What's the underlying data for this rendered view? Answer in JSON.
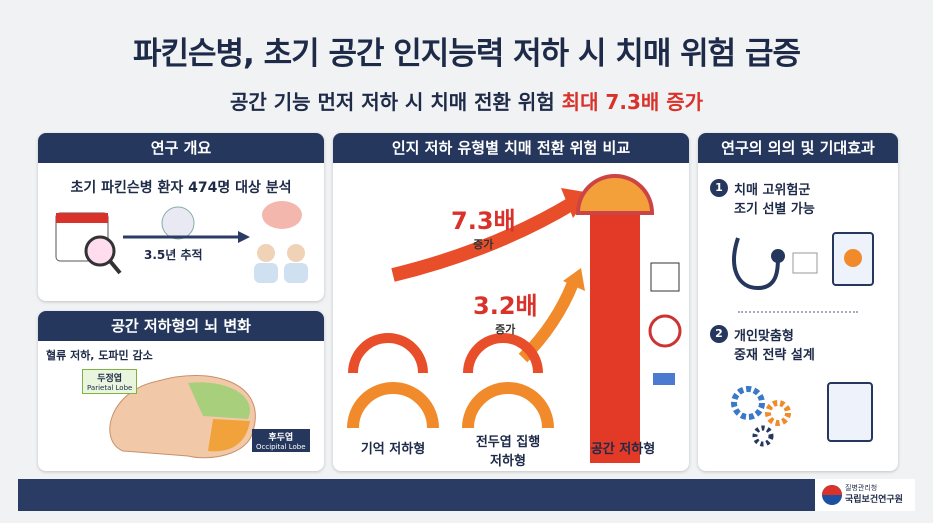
{
  "header": {
    "title": "파킨슨병, 초기 공간 인지능력 저하 시 치매 위험 급증",
    "subtitle": "공간 기능 먼저 저하 시 치매 전환 위험",
    "subtitle_highlight": "최대 7.3배 증가"
  },
  "overview": {
    "heading": "연구 개요",
    "summary": "초기 파킨슨병 환자 474명 대상 분석",
    "followup": "3.5년 추적"
  },
  "brain": {
    "heading": "공간 저하형의 뇌 변화",
    "note": "혈류 저하, 도파민 감소",
    "labels": [
      {
        "ko": "두정엽",
        "en": "Parietal Lobe"
      },
      {
        "ko": "후두엽",
        "en": "Occipital Lobe"
      }
    ]
  },
  "comparison": {
    "heading": "인지 저하 유형별 치매 전환 위험 비교",
    "callouts": [
      {
        "value": "7.3배",
        "label": "증가"
      },
      {
        "value": "3.2배",
        "label": "증가"
      }
    ],
    "groups": [
      "기억 저하형",
      "전두엽 집행\n저하형",
      "공간 저하형"
    ]
  },
  "significance": {
    "heading": "연구의 의의 및 기대효과",
    "items": [
      {
        "number": "1",
        "text": "치매 고위험군\n조기 선별 가능"
      },
      {
        "number": "2",
        "text": "개인맞춤형\n중재 전략 설계"
      }
    ]
  },
  "footer": {
    "org_small": "질병관리청",
    "org": "국립보건연구원"
  }
}
